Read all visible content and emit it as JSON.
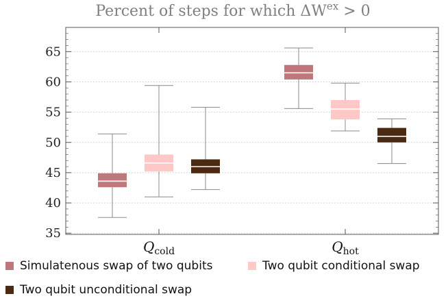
{
  "chart_data": {
    "type": "box",
    "title": {
      "prefix": "Percent of steps for which ΔW",
      "superscript": "ex",
      "suffix": " > 0"
    },
    "xlabel": "",
    "ylabel": "",
    "ylim": [
      34.8,
      69
    ],
    "yticks": [
      35,
      40,
      45,
      50,
      55,
      60,
      65
    ],
    "grid": true,
    "legend_position": "bottom",
    "categories": [
      {
        "label": "Q",
        "sub": "cold"
      },
      {
        "label": "Q",
        "sub": "hot"
      }
    ],
    "series": [
      {
        "name": "Simulatenous swap of two qubits",
        "color": "#c0777b",
        "boxes": [
          {
            "min": 37.6,
            "q1": 42.6,
            "median": 43.6,
            "q3": 44.9,
            "max": 51.4
          },
          {
            "min": 55.6,
            "q1": 60.4,
            "median": 61.5,
            "q3": 62.8,
            "max": 65.6
          }
        ]
      },
      {
        "name": "Two qubit conditional swap",
        "color": "#ffc7c6",
        "boxes": [
          {
            "min": 41.0,
            "q1": 45.2,
            "median": 46.6,
            "q3": 48.0,
            "max": 59.4
          },
          {
            "min": 51.9,
            "q1": 53.8,
            "median": 55.5,
            "q3": 57.0,
            "max": 59.8
          }
        ]
      },
      {
        "name": "Two qubit unconditional swap",
        "color": "#4a2a12",
        "boxes": [
          {
            "min": 42.2,
            "q1": 44.9,
            "median": 46.0,
            "q3": 47.2,
            "max": 55.8
          },
          {
            "min": 46.5,
            "q1": 50.0,
            "median": 51.0,
            "q3": 52.4,
            "max": 53.9
          }
        ]
      }
    ]
  }
}
